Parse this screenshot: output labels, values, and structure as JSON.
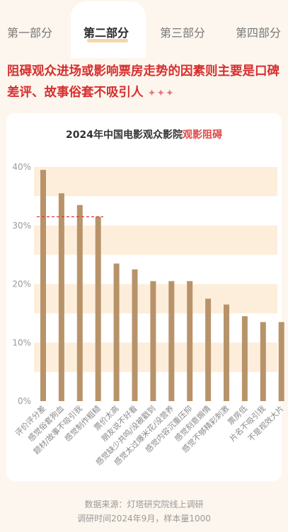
{
  "tabs": [
    "第一部分",
    "第二部分",
    "第三部分",
    "第四部分"
  ],
  "active_tab": 1,
  "headline": {
    "text": "阻碍观众进场或影响票房走势的因素则主要是口碑差评、故事俗套不吸引人",
    "stars": "✦✦✦"
  },
  "chart_title": {
    "prefix": "2024年中国电影观众影院",
    "highlight": "观影阻碍"
  },
  "chart_data": {
    "type": "bar",
    "title": "2024年中国电影观众影院观影阻碍",
    "categories": [
      "评价评分差",
      "感觉俗套狗血",
      "题材/故事不吸引我",
      "感觉制作粗糙",
      "票价太高",
      "朋友说不好看",
      "感觉缺少共鸣/没被戳到",
      "感觉太过爆米花/没营养",
      "感觉内容沉重压抑",
      "感觉刻意煽情",
      "感觉不够精彩刺激",
      "票房低",
      "片名不吸引我",
      "不是视效大片"
    ],
    "values": [
      39.5,
      35.5,
      33.5,
      31.5,
      23.5,
      22.5,
      20.5,
      20.5,
      20.5,
      17.5,
      16.5,
      14.5,
      13.5,
      13.5
    ],
    "yticks": [
      "0%",
      "10%",
      "20%",
      "30%",
      "40%"
    ],
    "ylim": [
      0,
      40
    ],
    "reference_line": 31.5,
    "colors": {
      "bar": "#b8936a",
      "band": "#fdeedb",
      "reference": "#d63a3a",
      "axis_text": "#999999"
    }
  },
  "source": {
    "line1": "数据来源：灯塔研究院线上调研",
    "line2": "调研时间2024年9月，样本量1000"
  }
}
